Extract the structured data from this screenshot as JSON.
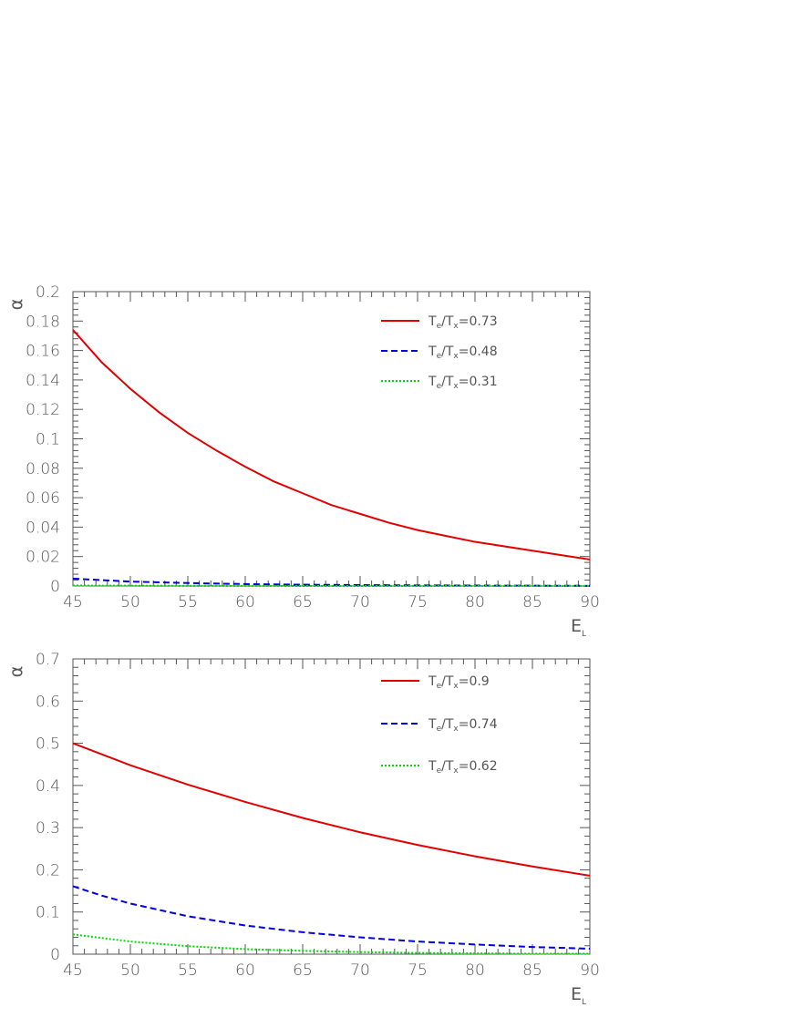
{
  "chart_data": [
    {
      "type": "line",
      "xlabel": "E_L",
      "ylabel": "α",
      "xlim": [
        45,
        90
      ],
      "ylim": [
        0,
        0.2
      ],
      "xticks": [
        "45",
        "50",
        "55",
        "60",
        "65",
        "70",
        "75",
        "80",
        "85",
        "90"
      ],
      "yticks": [
        "0",
        "0.02",
        "0.04",
        "0.06",
        "0.08",
        "0.1",
        "0.12",
        "0.14",
        "0.16",
        "0.18",
        "0.2"
      ],
      "legend_position": "top-right",
      "series": [
        {
          "name": "T_e/T_x=0.73",
          "legend_prefix": "T",
          "legend_sub1": "e",
          "legend_mid": "/T",
          "legend_sub2": "x",
          "legend_value": "=0.73",
          "color": "#e00000",
          "dash": "solid",
          "x": [
            45,
            47.5,
            50,
            52.5,
            55,
            57.5,
            60,
            62.5,
            65,
            67.5,
            70,
            72.5,
            75,
            77.5,
            80,
            82.5,
            85,
            87.5,
            90
          ],
          "y": [
            0.174,
            0.152,
            0.134,
            0.118,
            0.104,
            0.092,
            0.081,
            0.071,
            0.063,
            0.055,
            0.049,
            0.043,
            0.038,
            0.034,
            0.03,
            0.027,
            0.024,
            0.021,
            0.018
          ]
        },
        {
          "name": "T_e/T_x=0.48",
          "legend_prefix": "T",
          "legend_sub1": "e",
          "legend_mid": "/T",
          "legend_sub2": "x",
          "legend_value": "=0.48",
          "color": "#0000e0",
          "dash": "dashed",
          "x": [
            45,
            50,
            55,
            60,
            65,
            70,
            75,
            80,
            85,
            90
          ],
          "y": [
            0.005,
            0.003,
            0.002,
            0.0013,
            0.0009,
            0.0006,
            0.0004,
            0.0003,
            0.0002,
            0.0001
          ]
        },
        {
          "name": "T_e/T_x=0.31",
          "legend_prefix": "T",
          "legend_sub1": "e",
          "legend_mid": "/T",
          "legend_sub2": "x",
          "legend_value": "=0.31",
          "color": "#00dd00",
          "dash": "dotted",
          "x": [
            45,
            50,
            55,
            60,
            65,
            70,
            75,
            80,
            85,
            90
          ],
          "y": [
            0.0003,
            0.0002,
            0.0001,
            0.0001,
            0.0,
            0.0,
            0.0,
            0.0,
            0.0,
            0.0
          ]
        }
      ]
    },
    {
      "type": "line",
      "xlabel": "E_L",
      "ylabel": "α",
      "xlim": [
        45,
        90
      ],
      "ylim": [
        0,
        0.7
      ],
      "xticks": [
        "45",
        "50",
        "55",
        "60",
        "65",
        "70",
        "75",
        "80",
        "85",
        "90"
      ],
      "yticks": [
        "0",
        "0.1",
        "0.2",
        "0.3",
        "0.4",
        "0.5",
        "0.6",
        "0.7"
      ],
      "legend_position": "top-right",
      "series": [
        {
          "name": "T_e/T_x=0.9",
          "legend_prefix": "T",
          "legend_sub1": "e",
          "legend_mid": "/T",
          "legend_sub2": "x",
          "legend_value": "=0.9",
          "color": "#e00000",
          "dash": "solid",
          "x": [
            45,
            50,
            55,
            60,
            65,
            70,
            75,
            80,
            85,
            90
          ],
          "y": [
            0.5,
            0.448,
            0.402,
            0.361,
            0.323,
            0.289,
            0.259,
            0.232,
            0.208,
            0.186
          ]
        },
        {
          "name": "T_e/T_x=0.74",
          "legend_prefix": "T",
          "legend_sub1": "e",
          "legend_mid": "/T",
          "legend_sub2": "x",
          "legend_value": "=0.74",
          "color": "#0000e0",
          "dash": "dashed",
          "x": [
            45,
            47.5,
            50,
            55,
            60,
            65,
            70,
            75,
            80,
            85,
            90
          ],
          "y": [
            0.161,
            0.139,
            0.12,
            0.09,
            0.068,
            0.052,
            0.04,
            0.03,
            0.023,
            0.017,
            0.013
          ]
        },
        {
          "name": "T_e/T_x=0.62",
          "legend_prefix": "T",
          "legend_sub1": "e",
          "legend_mid": "/T",
          "legend_sub2": "x",
          "legend_value": "=0.62",
          "color": "#00dd00",
          "dash": "dotted",
          "x": [
            45,
            50,
            55,
            60,
            65,
            70,
            75,
            80,
            85,
            90
          ],
          "y": [
            0.047,
            0.03,
            0.019,
            0.012,
            0.008,
            0.005,
            0.003,
            0.002,
            0.001,
            0.001
          ]
        }
      ]
    }
  ]
}
